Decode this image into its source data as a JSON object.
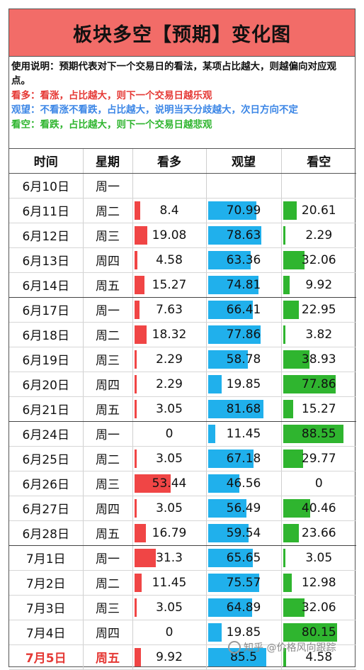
{
  "title": "板块多空【预期】变化图",
  "notes": {
    "main": "使用说明：预期代表对下一个交易日的看法，某项占比越大，则越偏向对应观点。",
    "bull": "看多：看涨，占比越大，则下一个交易日越乐观",
    "watch": "观望：不看涨不看跌，占比越大，说明当天分歧越大，次日方向不定",
    "bear": "看空：看跌，占比越大，则下一个交易日越悲观"
  },
  "headers": {
    "date": "时间",
    "week": "星期",
    "bull": "看多",
    "watch": "观望",
    "bear": "看空"
  },
  "colors": {
    "title_bg": "#f26c68",
    "bull": "#f04545",
    "watch": "#20b0ec",
    "bear": "#2fb52f",
    "today": "#e53935"
  },
  "rows": [
    {
      "date": "6月10日",
      "week": "周一",
      "bull": "",
      "watch": "",
      "bear": ""
    },
    {
      "date": "6月11日",
      "week": "周二",
      "bull": "8.4",
      "watch": "70.99",
      "bear": "20.61"
    },
    {
      "date": "6月12日",
      "week": "周三",
      "bull": "19.08",
      "watch": "78.63",
      "bear": "2.29"
    },
    {
      "date": "6月13日",
      "week": "周四",
      "bull": "4.58",
      "watch": "63.36",
      "bear": "32.06"
    },
    {
      "date": "6月14日",
      "week": "周五",
      "bull": "15.27",
      "watch": "74.81",
      "bear": "9.92"
    },
    {
      "date": "6月17日",
      "week": "周一",
      "bull": "7.63",
      "watch": "66.41",
      "bear": "22.95"
    },
    {
      "date": "6月18日",
      "week": "周二",
      "bull": "18.32",
      "watch": "77.86",
      "bear": "3.82"
    },
    {
      "date": "6月19日",
      "week": "周三",
      "bull": "2.29",
      "watch": "58.78",
      "bear": "38.93"
    },
    {
      "date": "6月20日",
      "week": "周四",
      "bull": "2.29",
      "watch": "19.85",
      "bear": "77.86"
    },
    {
      "date": "6月21日",
      "week": "周五",
      "bull": "3.05",
      "watch": "81.68",
      "bear": "15.27"
    },
    {
      "date": "6月24日",
      "week": "周一",
      "bull": "0",
      "watch": "11.45",
      "bear": "88.55"
    },
    {
      "date": "6月25日",
      "week": "周二",
      "bull": "3.05",
      "watch": "67.18",
      "bear": "29.77"
    },
    {
      "date": "6月26日",
      "week": "周三",
      "bull": "53.44",
      "watch": "46.56",
      "bear": "0"
    },
    {
      "date": "6月27日",
      "week": "周四",
      "bull": "3.05",
      "watch": "56.49",
      "bear": "40.46"
    },
    {
      "date": "6月28日",
      "week": "周五",
      "bull": "16.79",
      "watch": "59.54",
      "bear": "23.66"
    },
    {
      "date": "7月1日",
      "week": "周一",
      "bull": "31.3",
      "watch": "65.65",
      "bear": "3.05"
    },
    {
      "date": "7月2日",
      "week": "周二",
      "bull": "11.45",
      "watch": "75.57",
      "bear": "12.98"
    },
    {
      "date": "7月3日",
      "week": "周三",
      "bull": "3.05",
      "watch": "64.89",
      "bear": "32.06"
    },
    {
      "date": "7月4日",
      "week": "周四",
      "bull": "0",
      "watch": "19.85",
      "bear": "80.15"
    },
    {
      "date": "7月5日",
      "week": "周五",
      "bull": "9.92",
      "watch": "85.5",
      "bear": "4.58"
    }
  ],
  "watermark": "知乎 @价格风向跟踪"
}
